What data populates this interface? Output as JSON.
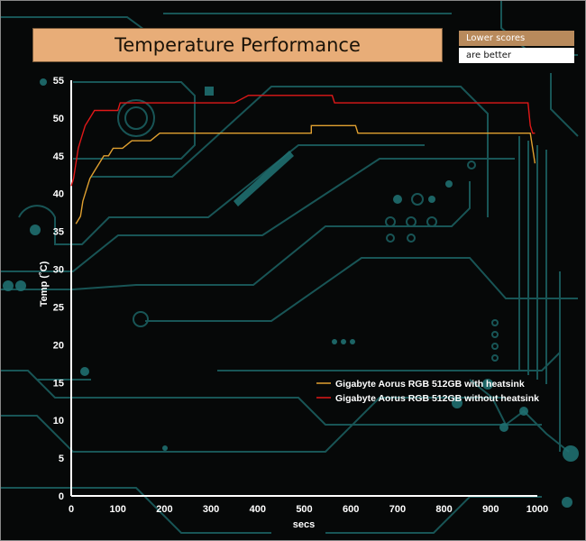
{
  "header": {
    "title": "Temperature Performance",
    "note_line1": "Lower scores",
    "note_line2": "are better"
  },
  "colors": {
    "series_with_heatsink": "#e0a030",
    "series_without_heatsink": "#e01818",
    "axis": "#ffffff",
    "circuit": "#1f6f70"
  },
  "chart_data": {
    "type": "line",
    "title": "Temperature Performance",
    "xlabel": "secs",
    "ylabel": "Temp (˚C)",
    "xlim": [
      0,
      1000
    ],
    "ylim": [
      0,
      55
    ],
    "xticks": [
      0,
      100,
      200,
      300,
      400,
      500,
      600,
      700,
      800,
      900,
      1000
    ],
    "yticks": [
      0,
      5,
      10,
      15,
      20,
      25,
      30,
      35,
      40,
      45,
      50,
      55
    ],
    "legend_position": "center-right",
    "series": [
      {
        "name": "Gigabyte Aorus RGB 512GB with heatsink",
        "color": "#e0a030",
        "points": [
          [
            10,
            36
          ],
          [
            20,
            37
          ],
          [
            25,
            39
          ],
          [
            30,
            40
          ],
          [
            35,
            41
          ],
          [
            40,
            42
          ],
          [
            50,
            43
          ],
          [
            60,
            44
          ],
          [
            70,
            45
          ],
          [
            80,
            45
          ],
          [
            90,
            46
          ],
          [
            100,
            46
          ],
          [
            110,
            46
          ],
          [
            130,
            47
          ],
          [
            150,
            47
          ],
          [
            170,
            47
          ],
          [
            190,
            48
          ],
          [
            250,
            48
          ],
          [
            300,
            48
          ],
          [
            350,
            48
          ],
          [
            400,
            48
          ],
          [
            450,
            48
          ],
          [
            500,
            48
          ],
          [
            515,
            48
          ],
          [
            515,
            49
          ],
          [
            550,
            49
          ],
          [
            600,
            49
          ],
          [
            610,
            49
          ],
          [
            615,
            48
          ],
          [
            700,
            48
          ],
          [
            800,
            48
          ],
          [
            900,
            48
          ],
          [
            970,
            48
          ],
          [
            985,
            48
          ],
          [
            995,
            44
          ]
        ]
      },
      {
        "name": "Gigabyte Aorus RGB 512GB without heatsink",
        "color": "#e01818",
        "points": [
          [
            0,
            41
          ],
          [
            5,
            42
          ],
          [
            10,
            44
          ],
          [
            15,
            46
          ],
          [
            20,
            47
          ],
          [
            25,
            48
          ],
          [
            30,
            49
          ],
          [
            40,
            50
          ],
          [
            50,
            51
          ],
          [
            60,
            51
          ],
          [
            80,
            51
          ],
          [
            90,
            51
          ],
          [
            100,
            51
          ],
          [
            105,
            52
          ],
          [
            200,
            52
          ],
          [
            300,
            52
          ],
          [
            350,
            52
          ],
          [
            380,
            53
          ],
          [
            430,
            53
          ],
          [
            440,
            53
          ],
          [
            450,
            53
          ],
          [
            460,
            53
          ],
          [
            480,
            53
          ],
          [
            490,
            53
          ],
          [
            500,
            53
          ],
          [
            510,
            53
          ],
          [
            560,
            53
          ],
          [
            565,
            52
          ],
          [
            600,
            52
          ],
          [
            700,
            52
          ],
          [
            800,
            52
          ],
          [
            900,
            52
          ],
          [
            980,
            52
          ],
          [
            985,
            49
          ],
          [
            990,
            48
          ],
          [
            995,
            48
          ]
        ]
      }
    ]
  }
}
